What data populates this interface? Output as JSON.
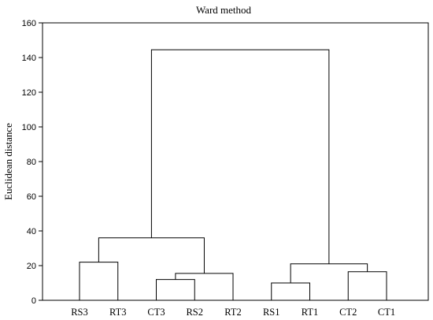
{
  "chart_data": {
    "type": "dendrogram",
    "title": "Ward method",
    "xlabel": "",
    "ylabel": "Euclidean distance",
    "ylim": [
      0,
      160
    ],
    "yticks": [
      0,
      20,
      40,
      60,
      80,
      100,
      120,
      140,
      160
    ],
    "grid": false,
    "leaves": [
      "RS3",
      "RT3",
      "CT3",
      "RS2",
      "RT2",
      "RS1",
      "RT1",
      "CT2",
      "CT1"
    ],
    "merges": [
      {
        "left": "RS3",
        "right": "RT3",
        "height": 22
      },
      {
        "left": "CT3",
        "right": "RS2",
        "height": 12
      },
      {
        "left": "CT3+RS2",
        "right": "RT2",
        "height": 15.5
      },
      {
        "left": "RS3+RT3",
        "right": "CT3+RS2+RT2",
        "height": 36
      },
      {
        "left": "RS1",
        "right": "RT1",
        "height": 10
      },
      {
        "left": "CT2",
        "right": "CT1",
        "height": 16.5
      },
      {
        "left": "RS1+RT1",
        "right": "CT2+CT1",
        "height": 21
      },
      {
        "left": "RS3+RT3+CT3+RS2+RT2",
        "right": "RS1+RT1+CT2+CT1",
        "height": 144.5
      }
    ]
  }
}
